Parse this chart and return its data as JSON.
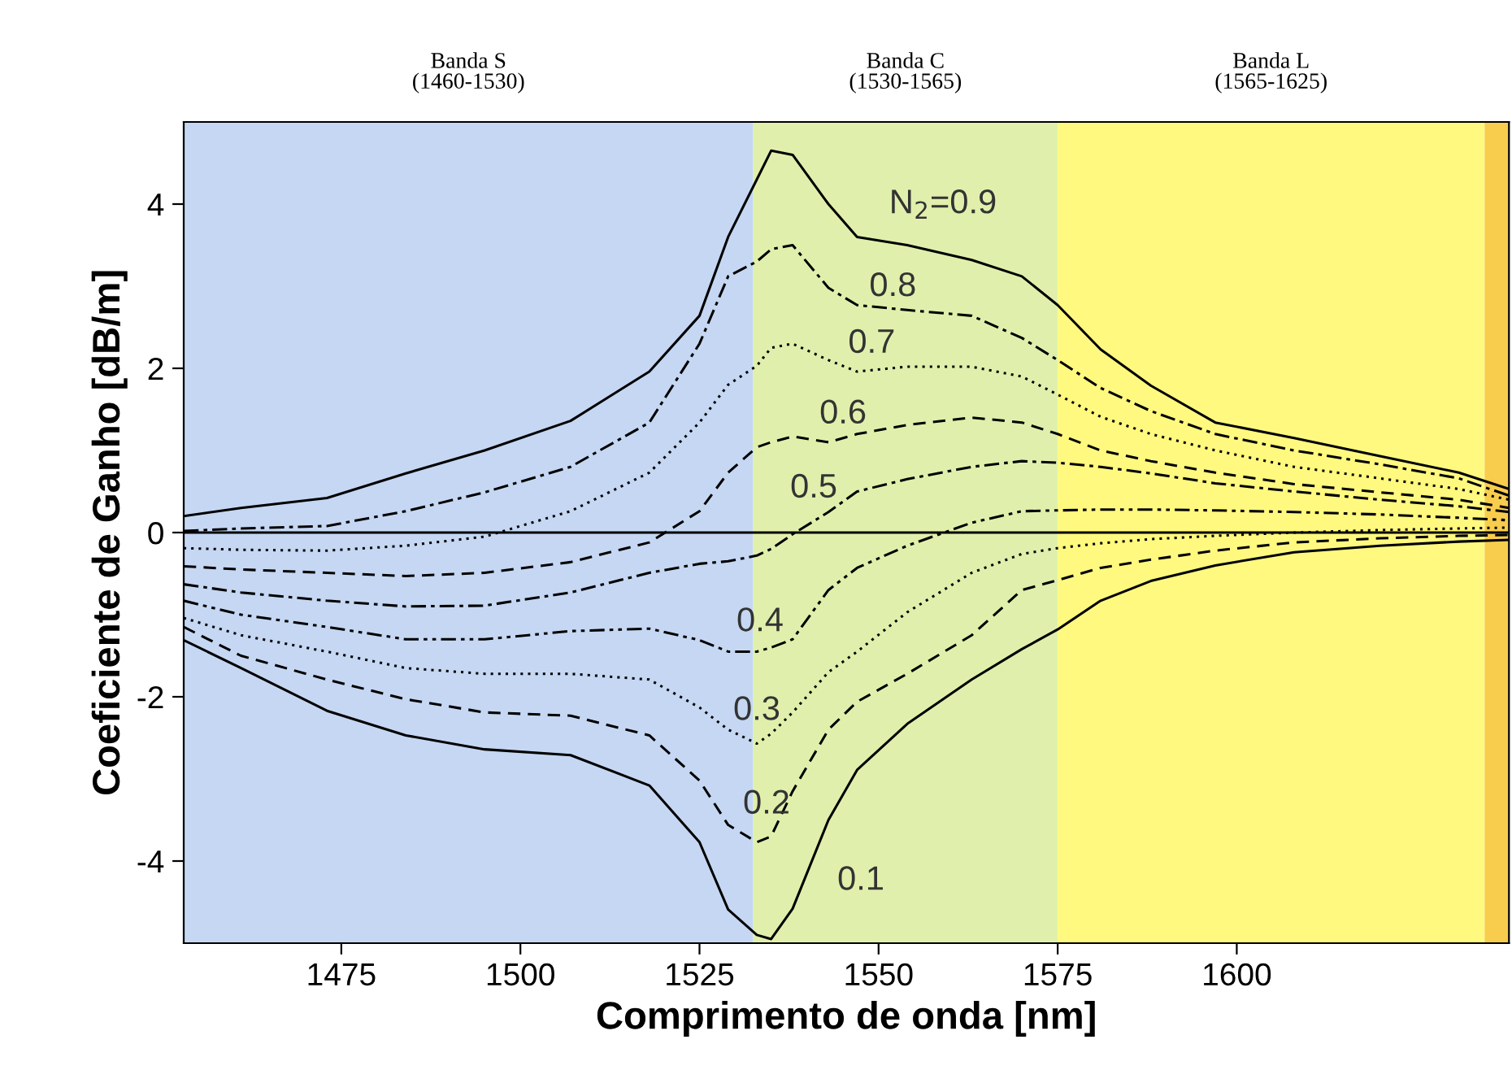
{
  "chart_data": {
    "type": "line",
    "xlabel": "Comprimento de onda [nm]",
    "ylabel": "Coeficiente de Ganho [dB/m]",
    "x": [
      1453,
      1461,
      1473,
      1484,
      1495,
      1507,
      1518,
      1525,
      1529,
      1533,
      1535,
      1538,
      1543,
      1547,
      1554,
      1563,
      1570,
      1575,
      1581,
      1588,
      1597,
      1608,
      1620,
      1631,
      1638
    ],
    "series": [
      {
        "name": "N$_{2}$=0.9",
        "color": "#000000",
        "line_style": "solid",
        "values": [
          0.2,
          0.3,
          0.42,
          0.72,
          1.0,
          1.36,
          1.96,
          2.64,
          3.6,
          4.3,
          4.65,
          4.6,
          4.0,
          3.6,
          3.5,
          3.32,
          3.12,
          2.77,
          2.23,
          1.79,
          1.34,
          1.15,
          0.93,
          0.73,
          0.53
        ]
      },
      {
        "name": "0.8",
        "color": "#000000",
        "line_style": "dashdot",
        "values": [
          0.02,
          0.05,
          0.08,
          0.26,
          0.49,
          0.8,
          1.34,
          2.3,
          3.12,
          3.3,
          3.45,
          3.5,
          2.98,
          2.77,
          2.71,
          2.64,
          2.37,
          2.1,
          1.76,
          1.48,
          1.2,
          1.0,
          0.83,
          0.66,
          0.45
        ]
      },
      {
        "name": "0.7",
        "color": "#000000",
        "line_style": "dotted",
        "values": [
          -0.19,
          -0.21,
          -0.22,
          -0.16,
          -0.05,
          0.26,
          0.73,
          1.34,
          1.8,
          2.03,
          2.25,
          2.3,
          2.1,
          1.96,
          2.02,
          2.02,
          1.9,
          1.68,
          1.41,
          1.2,
          1.0,
          0.8,
          0.66,
          0.53,
          0.4
        ]
      },
      {
        "name": "0.6",
        "color": "#000000",
        "line_style": "dashed",
        "values": [
          -0.41,
          -0.45,
          -0.49,
          -0.53,
          -0.49,
          -0.36,
          -0.12,
          0.26,
          0.73,
          1.04,
          1.1,
          1.17,
          1.1,
          1.2,
          1.31,
          1.4,
          1.34,
          1.2,
          1.0,
          0.87,
          0.73,
          0.59,
          0.49,
          0.4,
          0.3
        ]
      },
      {
        "name": "0.5",
        "color": "#000000",
        "line_style": "dashdot",
        "values": [
          -0.63,
          -0.73,
          -0.83,
          -0.9,
          -0.89,
          -0.73,
          -0.49,
          -0.38,
          -0.35,
          -0.28,
          -0.2,
          -0.02,
          0.25,
          0.5,
          0.65,
          0.8,
          0.87,
          0.85,
          0.8,
          0.72,
          0.6,
          0.5,
          0.4,
          0.32,
          0.25
        ]
      },
      {
        "name": "0.4",
        "color": "#000000",
        "line_style": "dashdotdot",
        "values": [
          -0.83,
          -1.0,
          -1.15,
          -1.3,
          -1.3,
          -1.2,
          -1.17,
          -1.31,
          -1.45,
          -1.45,
          -1.4,
          -1.3,
          -0.7,
          -0.43,
          -0.16,
          0.12,
          0.26,
          0.27,
          0.28,
          0.28,
          0.27,
          0.25,
          0.22,
          0.18,
          0.15
        ]
      },
      {
        "name": "0.3",
        "color": "#000000",
        "line_style": "dotted",
        "values": [
          -1.04,
          -1.25,
          -1.45,
          -1.65,
          -1.72,
          -1.72,
          -1.79,
          -2.13,
          -2.4,
          -2.57,
          -2.45,
          -2.19,
          -1.7,
          -1.45,
          -0.97,
          -0.49,
          -0.26,
          -0.19,
          -0.13,
          -0.08,
          -0.04,
          0.0,
          0.03,
          0.05,
          0.06
        ]
      },
      {
        "name": "0.2",
        "color": "#000000",
        "line_style": "dashed",
        "values": [
          -1.15,
          -1.5,
          -1.79,
          -2.03,
          -2.19,
          -2.23,
          -2.47,
          -3.02,
          -3.56,
          -3.77,
          -3.7,
          -3.15,
          -2.4,
          -2.06,
          -1.72,
          -1.25,
          -0.7,
          -0.58,
          -0.43,
          -0.33,
          -0.22,
          -0.12,
          -0.07,
          -0.04,
          -0.03
        ]
      },
      {
        "name": "0.1",
        "color": "#000000",
        "line_style": "solid",
        "values": [
          -1.31,
          -1.65,
          -2.17,
          -2.47,
          -2.64,
          -2.71,
          -3.08,
          -3.77,
          -4.59,
          -4.9,
          -4.95,
          -4.58,
          -3.5,
          -2.89,
          -2.33,
          -1.79,
          -1.42,
          -1.18,
          -0.83,
          -0.59,
          -0.4,
          -0.24,
          -0.16,
          -0.11,
          -0.09
        ]
      }
    ],
    "bands": [
      {
        "axis": "x",
        "from": 1453,
        "to": 1532.5,
        "label": "Banda S\n(1460-1530)",
        "color": "#c5d7f2"
      },
      {
        "axis": "x",
        "from": 1532.5,
        "to": 1575,
        "label": "Banda C\n(1530-1565)",
        "color": "#e0f0ac"
      },
      {
        "axis": "x",
        "from": 1575,
        "to": 1634.6,
        "label": "Banda L\n(1565-1625)",
        "color": "#fff97f"
      },
      {
        "axis": "x",
        "from": 1634.6,
        "to": 1638,
        "color": "#f8cd4d"
      }
    ],
    "ref_lines": [
      {
        "axis": "y",
        "value": 0,
        "color": "#000000",
        "line_style": "solid"
      }
    ],
    "xlim": [
      1453,
      1638
    ],
    "ylim": [
      -5,
      5
    ],
    "xticks": [
      1475,
      1500,
      1525,
      1550,
      1575,
      1600
    ],
    "yticks": [
      {
        "value": -4,
        "label": "-4"
      },
      {
        "value": -2,
        "label": "-2"
      },
      0,
      2,
      4
    ],
    "grid": false,
    "legend": false
  }
}
